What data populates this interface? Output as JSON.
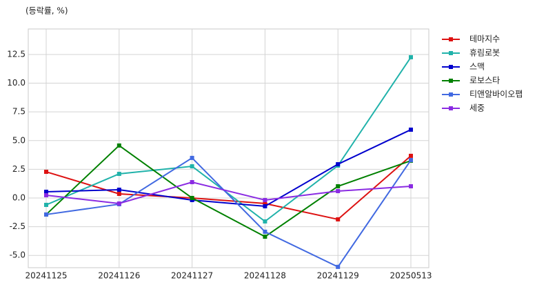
{
  "chart_data": {
    "type": "line",
    "y_unit_label": "(등락률, %)",
    "categories": [
      "20241125",
      "20241126",
      "20241127",
      "20241128",
      "20241129",
      "20250513"
    ],
    "series": [
      {
        "name": "테마지수",
        "color": "#dd1111",
        "values": [
          2.28,
          0.36,
          0.0,
          -0.48,
          -1.86,
          3.67
        ]
      },
      {
        "name": "휴림로봇",
        "color": "#20b2aa",
        "values": [
          -0.6,
          2.1,
          2.76,
          -2.04,
          2.82,
          12.26
        ]
      },
      {
        "name": "스맥",
        "color": "#0000cd",
        "values": [
          0.54,
          0.72,
          -0.18,
          -0.72,
          2.94,
          5.95
        ]
      },
      {
        "name": "로보스타",
        "color": "#008000",
        "values": [
          -1.44,
          4.57,
          0.0,
          -3.37,
          1.02,
          3.25
        ]
      },
      {
        "name": "티앤알바이오팹",
        "color": "#4169e1",
        "values": [
          -1.44,
          -0.54,
          3.49,
          -2.94,
          -6.0,
          3.3
        ]
      },
      {
        "name": "세중",
        "color": "#8a2be2",
        "values": [
          0.24,
          -0.48,
          1.38,
          -0.18,
          0.6,
          1.02
        ]
      }
    ],
    "ylim": [
      -6.07,
      14.72
    ],
    "yticks": [
      12.5,
      {
        "value": 10,
        "label": "10.0"
      },
      7.5,
      {
        "value": 5,
        "label": "5.0"
      },
      2.5,
      {
        "value": 0,
        "label": "0.0"
      },
      -2.5,
      {
        "value": -5,
        "label": "-5.0"
      }
    ],
    "grid": true,
    "legend": "outside-right"
  }
}
